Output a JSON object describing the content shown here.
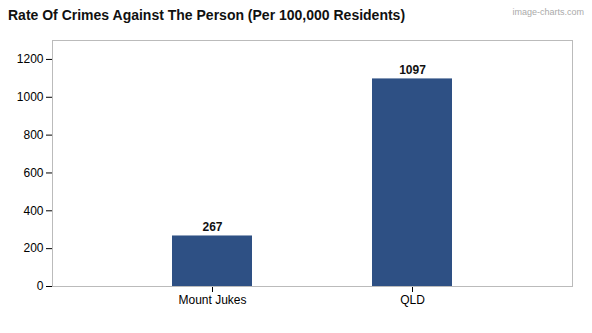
{
  "chart_data": {
    "type": "bar",
    "title": "Rate Of Crimes Against The Person (Per 100,000 Residents)",
    "categories": [
      "Mount Jukes",
      "QLD"
    ],
    "values": [
      267,
      1097
    ],
    "color": "#2e5084",
    "ylim": [
      0,
      1300
    ],
    "yticks": [
      0,
      200,
      400,
      600,
      800,
      1000,
      1200
    ],
    "grid": false,
    "data_labels": true,
    "annotations": [
      "image-charts.com"
    ]
  }
}
